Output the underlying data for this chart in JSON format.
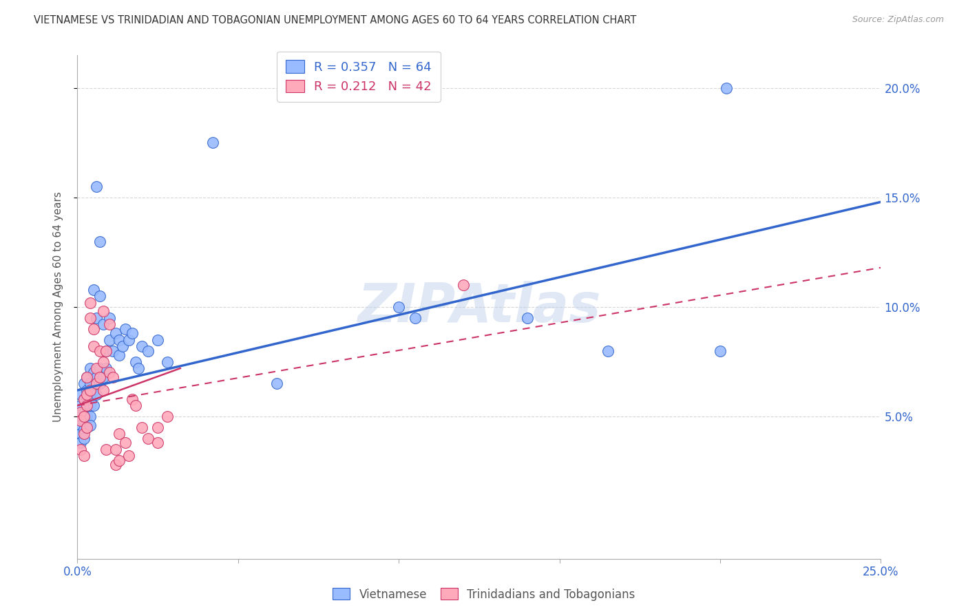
{
  "title": "VIETNAMESE VS TRINIDADIAN AND TOBAGONIAN UNEMPLOYMENT AMONG AGES 60 TO 64 YEARS CORRELATION CHART",
  "source": "Source: ZipAtlas.com",
  "ylabel": "Unemployment Among Ages 60 to 64 years",
  "xlim": [
    0.0,
    0.25
  ],
  "ylim": [
    -0.015,
    0.215
  ],
  "yticks": [
    0.05,
    0.1,
    0.15,
    0.2
  ],
  "yticklabels": [
    "5.0%",
    "10.0%",
    "15.0%",
    "20.0%"
  ],
  "xtick_positions": [
    0.0,
    0.05,
    0.1,
    0.15,
    0.2,
    0.25
  ],
  "xtick_labels": [
    "0.0%",
    "",
    "",
    "",
    "",
    "25.0%"
  ],
  "watermark": "ZIPAtlas",
  "legend_entries": [
    {
      "label": "R = 0.357   N = 64",
      "color": "#4477dd"
    },
    {
      "label": "R = 0.212   N = 42",
      "color": "#dd4477"
    }
  ],
  "blue_scatter": [
    [
      0.001,
      0.06
    ],
    [
      0.001,
      0.055
    ],
    [
      0.001,
      0.05
    ],
    [
      0.001,
      0.045
    ],
    [
      0.001,
      0.042
    ],
    [
      0.001,
      0.038
    ],
    [
      0.002,
      0.065
    ],
    [
      0.002,
      0.058
    ],
    [
      0.002,
      0.052
    ],
    [
      0.002,
      0.048
    ],
    [
      0.002,
      0.044
    ],
    [
      0.002,
      0.04
    ],
    [
      0.003,
      0.068
    ],
    [
      0.003,
      0.062
    ],
    [
      0.003,
      0.058
    ],
    [
      0.003,
      0.055
    ],
    [
      0.003,
      0.05
    ],
    [
      0.003,
      0.045
    ],
    [
      0.004,
      0.072
    ],
    [
      0.004,
      0.065
    ],
    [
      0.004,
      0.06
    ],
    [
      0.004,
      0.055
    ],
    [
      0.004,
      0.05
    ],
    [
      0.004,
      0.046
    ],
    [
      0.005,
      0.108
    ],
    [
      0.005,
      0.07
    ],
    [
      0.005,
      0.062
    ],
    [
      0.005,
      0.055
    ],
    [
      0.006,
      0.155
    ],
    [
      0.006,
      0.095
    ],
    [
      0.006,
      0.068
    ],
    [
      0.006,
      0.06
    ],
    [
      0.007,
      0.13
    ],
    [
      0.007,
      0.105
    ],
    [
      0.007,
      0.072
    ],
    [
      0.007,
      0.065
    ],
    [
      0.008,
      0.092
    ],
    [
      0.008,
      0.068
    ],
    [
      0.009,
      0.08
    ],
    [
      0.009,
      0.072
    ],
    [
      0.01,
      0.095
    ],
    [
      0.01,
      0.085
    ],
    [
      0.011,
      0.08
    ],
    [
      0.012,
      0.088
    ],
    [
      0.013,
      0.085
    ],
    [
      0.013,
      0.078
    ],
    [
      0.014,
      0.082
    ],
    [
      0.015,
      0.09
    ],
    [
      0.016,
      0.085
    ],
    [
      0.017,
      0.088
    ],
    [
      0.018,
      0.075
    ],
    [
      0.019,
      0.072
    ],
    [
      0.02,
      0.082
    ],
    [
      0.022,
      0.08
    ],
    [
      0.025,
      0.085
    ],
    [
      0.028,
      0.075
    ],
    [
      0.042,
      0.175
    ],
    [
      0.062,
      0.065
    ],
    [
      0.1,
      0.1
    ],
    [
      0.105,
      0.095
    ],
    [
      0.14,
      0.095
    ],
    [
      0.165,
      0.08
    ],
    [
      0.2,
      0.08
    ],
    [
      0.202,
      0.2
    ]
  ],
  "pink_scatter": [
    [
      0.001,
      0.052
    ],
    [
      0.001,
      0.048
    ],
    [
      0.001,
      0.035
    ],
    [
      0.002,
      0.058
    ],
    [
      0.002,
      0.05
    ],
    [
      0.002,
      0.042
    ],
    [
      0.002,
      0.032
    ],
    [
      0.003,
      0.068
    ],
    [
      0.003,
      0.06
    ],
    [
      0.003,
      0.055
    ],
    [
      0.003,
      0.045
    ],
    [
      0.004,
      0.102
    ],
    [
      0.004,
      0.095
    ],
    [
      0.004,
      0.062
    ],
    [
      0.005,
      0.09
    ],
    [
      0.005,
      0.082
    ],
    [
      0.006,
      0.072
    ],
    [
      0.006,
      0.065
    ],
    [
      0.007,
      0.08
    ],
    [
      0.007,
      0.068
    ],
    [
      0.008,
      0.098
    ],
    [
      0.008,
      0.075
    ],
    [
      0.008,
      0.062
    ],
    [
      0.009,
      0.08
    ],
    [
      0.009,
      0.035
    ],
    [
      0.01,
      0.092
    ],
    [
      0.01,
      0.07
    ],
    [
      0.011,
      0.068
    ],
    [
      0.012,
      0.035
    ],
    [
      0.012,
      0.028
    ],
    [
      0.013,
      0.042
    ],
    [
      0.013,
      0.03
    ],
    [
      0.015,
      0.038
    ],
    [
      0.016,
      0.032
    ],
    [
      0.017,
      0.058
    ],
    [
      0.018,
      0.055
    ],
    [
      0.02,
      0.045
    ],
    [
      0.022,
      0.04
    ],
    [
      0.025,
      0.045
    ],
    [
      0.025,
      0.038
    ],
    [
      0.028,
      0.05
    ],
    [
      0.12,
      0.11
    ]
  ],
  "blue_line": {
    "x0": 0.0,
    "y0": 0.062,
    "x1": 0.25,
    "y1": 0.148
  },
  "pink_line_solid": {
    "x0": 0.0,
    "y0": 0.055,
    "x1": 0.032,
    "y1": 0.072
  },
  "pink_line_dashed": {
    "x0": 0.0,
    "y0": 0.055,
    "x1": 0.25,
    "y1": 0.118
  },
  "blue_color": "#3366cc",
  "blue_scatter_color": "#99bbff",
  "pink_color": "#cc3366",
  "pink_scatter_color": "#ffaabb",
  "background_color": "#ffffff",
  "grid_color": "#cccccc",
  "grid_style": "--",
  "grid_alpha": 0.6
}
